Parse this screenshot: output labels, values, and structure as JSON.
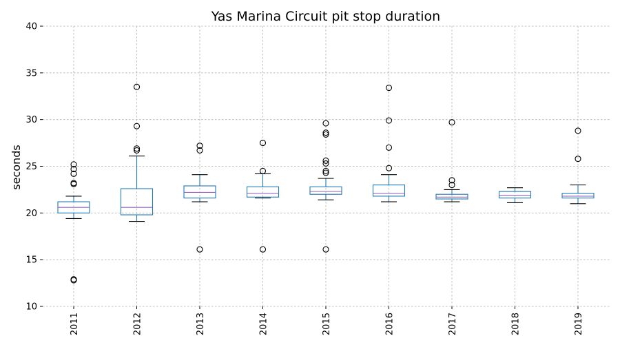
{
  "chart_data": {
    "type": "box",
    "title": "Yas Marina Circuit pit stop duration",
    "xlabel": "",
    "ylabel": "seconds",
    "ylim": [
      10,
      40
    ],
    "yticks": [
      10,
      15,
      20,
      25,
      30,
      35,
      40
    ],
    "grid": true,
    "colors": {
      "box": "#1f77b4",
      "median": "#9467bd",
      "whisker": "#1f77b4",
      "cap": "#000000",
      "flier": "#000000",
      "grid": "#b0b0b0"
    },
    "categories": [
      "2011",
      "2012",
      "2013",
      "2014",
      "2015",
      "2016",
      "2017",
      "2018",
      "2019"
    ],
    "boxes": [
      {
        "category": "2011",
        "whisker_low": 19.4,
        "q1": 20.0,
        "median": 20.6,
        "q3": 21.2,
        "whisker_high": 21.8,
        "fliers": [
          25.2,
          24.7,
          24.2,
          23.2,
          23.1,
          12.9,
          12.8
        ]
      },
      {
        "category": "2012",
        "whisker_low": 19.1,
        "q1": 19.8,
        "median": 20.6,
        "q3": 22.6,
        "whisker_high": 26.1,
        "fliers": [
          33.5,
          29.3,
          26.9,
          26.7
        ]
      },
      {
        "category": "2013",
        "whisker_low": 21.2,
        "q1": 21.6,
        "median": 22.2,
        "q3": 22.9,
        "whisker_high": 24.1,
        "fliers": [
          27.2,
          26.7,
          16.1
        ]
      },
      {
        "category": "2014",
        "whisker_low": 21.6,
        "q1": 21.7,
        "median": 22.1,
        "q3": 22.8,
        "whisker_high": 24.2,
        "fliers": [
          27.5,
          24.5,
          16.1
        ]
      },
      {
        "category": "2015",
        "whisker_low": 21.4,
        "q1": 22.0,
        "median": 22.3,
        "q3": 22.8,
        "whisker_high": 23.7,
        "fliers": [
          29.6,
          28.6,
          28.4,
          25.6,
          25.3,
          24.5,
          24.3,
          16.1
        ]
      },
      {
        "category": "2016",
        "whisker_low": 21.2,
        "q1": 21.8,
        "median": 22.1,
        "q3": 23.0,
        "whisker_high": 24.1,
        "fliers": [
          33.4,
          29.9,
          27.0,
          24.8
        ]
      },
      {
        "category": "2017",
        "whisker_low": 21.2,
        "q1": 21.5,
        "median": 21.7,
        "q3": 22.0,
        "whisker_high": 22.5,
        "fliers": [
          29.7,
          23.5,
          23.0
        ]
      },
      {
        "category": "2018",
        "whisker_low": 21.1,
        "q1": 21.6,
        "median": 21.9,
        "q3": 22.3,
        "whisker_high": 22.7,
        "fliers": []
      },
      {
        "category": "2019",
        "whisker_low": 21.0,
        "q1": 21.6,
        "median": 21.8,
        "q3": 22.1,
        "whisker_high": 23.0,
        "fliers": [
          28.8,
          25.8
        ]
      }
    ]
  }
}
